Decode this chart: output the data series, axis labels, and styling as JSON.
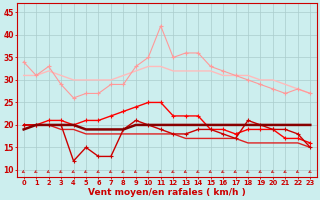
{
  "x": [
    0,
    1,
    2,
    3,
    4,
    5,
    6,
    7,
    8,
    9,
    10,
    11,
    12,
    13,
    14,
    15,
    16,
    17,
    18,
    19,
    20,
    21,
    22,
    23
  ],
  "line1": [
    34,
    31,
    33,
    29,
    26,
    27,
    27,
    29,
    29,
    33,
    35,
    42,
    35,
    36,
    36,
    33,
    32,
    31,
    30,
    29,
    28,
    27,
    28,
    27
  ],
  "line2": [
    31,
    31,
    32,
    31,
    30,
    30,
    30,
    30,
    31,
    32,
    33,
    33,
    32,
    32,
    32,
    32,
    31,
    31,
    31,
    30,
    30,
    29,
    28,
    27
  ],
  "line3": [
    20,
    20,
    21,
    21,
    20,
    21,
    21,
    22,
    23,
    24,
    25,
    25,
    22,
    22,
    22,
    19,
    19,
    18,
    19,
    19,
    19,
    17,
    17,
    16
  ],
  "line4": [
    20,
    20,
    20,
    20,
    12,
    15,
    13,
    13,
    19,
    21,
    20,
    19,
    18,
    18,
    19,
    19,
    18,
    17,
    21,
    20,
    19,
    19,
    18,
    15
  ],
  "line5": [
    19,
    20,
    20,
    20,
    20,
    19,
    19,
    19,
    19,
    20,
    20,
    20,
    20,
    20,
    20,
    20,
    20,
    20,
    20,
    20,
    20,
    20,
    20,
    20
  ],
  "line6": [
    20,
    20,
    20,
    19,
    19,
    18,
    18,
    18,
    18,
    18,
    18,
    18,
    18,
    17,
    17,
    17,
    17,
    17,
    16,
    16,
    16,
    16,
    16,
    15
  ],
  "background_color": "#cceeee",
  "grid_color": "#aacccc",
  "ylabel_ticks": [
    10,
    15,
    20,
    25,
    30,
    35,
    40,
    45
  ],
  "xlabel": "Vent moyen/en rafales ( km/h )",
  "ylim": [
    8.5,
    47
  ],
  "xlim": [
    -0.5,
    23.5
  ],
  "line1_color": "#ff9999",
  "line2_color": "#ffbbbb",
  "line3_color": "#ff0000",
  "line4_color": "#cc0000",
  "line5_color": "#880000",
  "line6_color": "#dd2222",
  "arrow_color": "#cc2222",
  "tick_color": "#cc0000",
  "label_color": "#cc0000"
}
